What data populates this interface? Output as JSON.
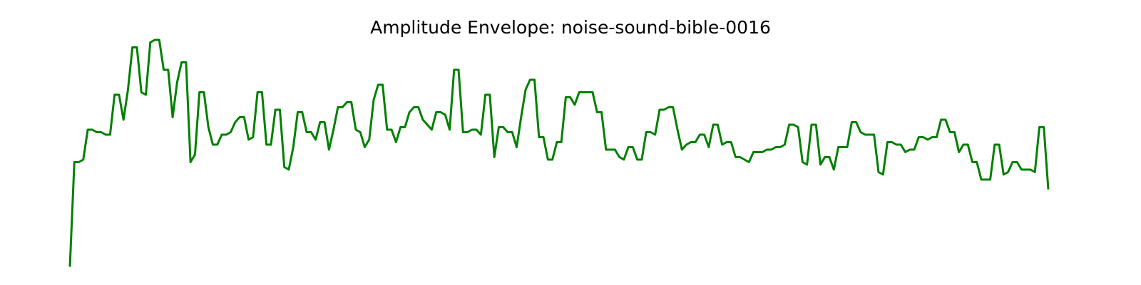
{
  "chart_data": {
    "type": "line",
    "title": "Amplitude Envelope: noise-sound-bible-0016",
    "xlabel": "",
    "ylabel": "",
    "axes_visible": false,
    "grid": false,
    "legend": "none",
    "ylim": [
      0,
      1
    ],
    "series": [
      {
        "color": "#008000",
        "values": [
          0.05,
          0.47,
          0.47,
          0.48,
          0.6,
          0.6,
          0.59,
          0.59,
          0.58,
          0.58,
          0.74,
          0.74,
          0.64,
          0.76,
          0.93,
          0.93,
          0.75,
          0.74,
          0.95,
          0.96,
          0.96,
          0.84,
          0.84,
          0.65,
          0.79,
          0.87,
          0.87,
          0.47,
          0.5,
          0.75,
          0.75,
          0.61,
          0.54,
          0.54,
          0.58,
          0.58,
          0.59,
          0.63,
          0.65,
          0.65,
          0.56,
          0.57,
          0.75,
          0.75,
          0.54,
          0.54,
          0.68,
          0.68,
          0.45,
          0.44,
          0.53,
          0.67,
          0.67,
          0.59,
          0.59,
          0.56,
          0.63,
          0.63,
          0.52,
          0.6,
          0.69,
          0.69,
          0.71,
          0.71,
          0.6,
          0.59,
          0.53,
          0.56,
          0.72,
          0.78,
          0.78,
          0.6,
          0.6,
          0.55,
          0.61,
          0.61,
          0.67,
          0.69,
          0.69,
          0.64,
          0.62,
          0.6,
          0.67,
          0.67,
          0.66,
          0.6,
          0.84,
          0.84,
          0.59,
          0.59,
          0.6,
          0.6,
          0.58,
          0.74,
          0.74,
          0.49,
          0.61,
          0.61,
          0.59,
          0.59,
          0.53,
          0.65,
          0.76,
          0.8,
          0.8,
          0.57,
          0.57,
          0.48,
          0.48,
          0.55,
          0.55,
          0.73,
          0.73,
          0.7,
          0.75,
          0.75,
          0.75,
          0.75,
          0.67,
          0.67,
          0.52,
          0.52,
          0.52,
          0.49,
          0.48,
          0.53,
          0.53,
          0.48,
          0.48,
          0.59,
          0.59,
          0.58,
          0.68,
          0.68,
          0.69,
          0.69,
          0.6,
          0.52,
          0.54,
          0.55,
          0.55,
          0.58,
          0.58,
          0.53,
          0.62,
          0.62,
          0.54,
          0.55,
          0.55,
          0.49,
          0.49,
          0.48,
          0.47,
          0.51,
          0.51,
          0.51,
          0.52,
          0.52,
          0.53,
          0.53,
          0.54,
          0.62,
          0.62,
          0.61,
          0.47,
          0.46,
          0.62,
          0.62,
          0.46,
          0.49,
          0.49,
          0.44,
          0.53,
          0.53,
          0.53,
          0.63,
          0.63,
          0.59,
          0.58,
          0.58,
          0.58,
          0.43,
          0.42,
          0.55,
          0.55,
          0.54,
          0.54,
          0.51,
          0.52,
          0.52,
          0.57,
          0.57,
          0.56,
          0.57,
          0.57,
          0.64,
          0.64,
          0.59,
          0.59,
          0.51,
          0.54,
          0.54,
          0.47,
          0.47,
          0.4,
          0.4,
          0.4,
          0.54,
          0.54,
          0.42,
          0.43,
          0.47,
          0.47,
          0.44,
          0.44,
          0.44,
          0.43,
          0.61,
          0.61,
          0.36
        ]
      }
    ]
  }
}
